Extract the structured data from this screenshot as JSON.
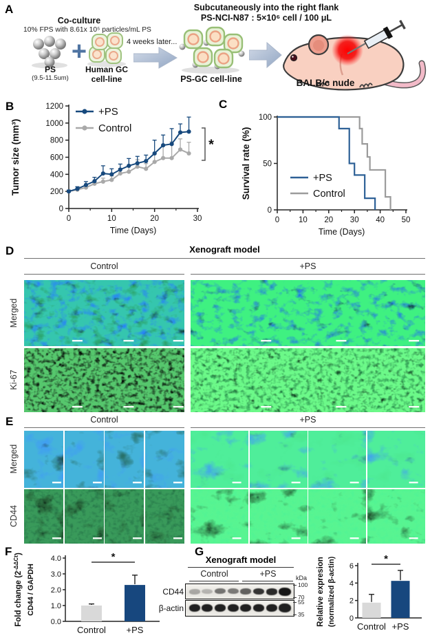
{
  "panel_a": {
    "label": "A",
    "coculture_title": "Co-culture",
    "coculture_sub": "10% FPS with 8.61x 10⁵ particles/mL PS",
    "plus_sign": "+",
    "ps_label": "PS",
    "ps_size": "(9.5-11.5um)",
    "gc_line1": "Human GC",
    "gc_line2": "cell-line",
    "weeks_later": "4 weeks later...",
    "psgc_label": "PS-GC cell-line",
    "flank_line1": "Subcutaneously into the right flank",
    "flank_line2": "PS-NCI-N87 : 5×10⁶ cell / 100 μL",
    "mouse_label": "BALB/c nude"
  },
  "panel_b": {
    "label": "B"
  },
  "panel_c": {
    "label": "C"
  },
  "panel_d": {
    "label": "D",
    "title": "Xenograft model",
    "col1": "Control",
    "col2": "+PS",
    "row1": "Merged",
    "row2": "Ki-67"
  },
  "panel_e": {
    "label": "E",
    "col1": "Control",
    "col2": "+PS",
    "row1": "Merged",
    "row2": "CD44"
  },
  "panel_f": {
    "label": "F"
  },
  "panel_g": {
    "label": "G",
    "title": "Xenograft model",
    "col1": "Control",
    "col2": "+PS",
    "blot_row1": "CD44",
    "blot_row2": "β-actin",
    "kda_label": "kDa",
    "kda_marks": [
      "100",
      "70",
      "55",
      "35"
    ],
    "western": {
      "lanes": 8,
      "cd44_intensities": [
        0.3,
        0.24,
        0.55,
        0.52,
        0.64,
        0.85,
        0.9,
        1.0
      ],
      "bactin_intensities": [
        0.95,
        0.95,
        0.95,
        0.95,
        0.95,
        0.95,
        0.95,
        0.95
      ]
    }
  },
  "colors": {
    "navy": "#17497D",
    "gray_line": "#A9A9A9",
    "gray_bar": "#D9D9D9",
    "survival_blue": "#2D6096",
    "survival_gray": "#9B9B9B"
  },
  "chart_data": [
    {
      "id": "tumor",
      "type": "line",
      "xlabel": "Time (Days)",
      "ylabel": "Tumor size (mm³)",
      "xlim": [
        0,
        30
      ],
      "ylim": [
        0,
        1200
      ],
      "xticks": [
        0,
        10,
        20,
        30
      ],
      "xticks_minor": [
        5,
        15,
        25
      ],
      "yticks": [
        0,
        200,
        400,
        600,
        800,
        1000,
        1200
      ],
      "x": [
        0,
        2,
        4,
        6,
        8,
        10,
        12,
        14,
        16,
        18,
        20,
        22,
        24,
        26,
        28
      ],
      "series": [
        {
          "name": "+PS",
          "color": "#17497D",
          "values": [
            200,
            230,
            275,
            320,
            410,
            400,
            455,
            500,
            530,
            555,
            645,
            740,
            755,
            890,
            900
          ],
          "err": [
            15,
            25,
            40,
            45,
            90,
            65,
            65,
            85,
            80,
            70,
            155,
            120,
            180,
            100,
            170
          ]
        },
        {
          "name": "Control",
          "color": "#A9A9A9",
          "values": [
            200,
            220,
            245,
            290,
            315,
            335,
            410,
            430,
            490,
            465,
            545,
            590,
            590,
            690,
            645
          ],
          "err": [
            10,
            15,
            20,
            30,
            40,
            45,
            60,
            60,
            80,
            60,
            90,
            150,
            190,
            125,
            130
          ]
        }
      ],
      "significance": "*",
      "legend_position": "top-left",
      "grid": false
    },
    {
      "id": "survival",
      "type": "step-line",
      "xlabel": "Time (Days)",
      "ylabel": "Survival rate (%)",
      "xlim": [
        0,
        50
      ],
      "ylim": [
        0,
        100
      ],
      "xticks": [
        0,
        10,
        20,
        30,
        40,
        50
      ],
      "xticks_minor": [
        5,
        15,
        25,
        35,
        45
      ],
      "yticks": [
        0,
        50,
        100
      ],
      "series": [
        {
          "name": "+PS",
          "color": "#2D6096",
          "points": [
            [
              0,
              100
            ],
            [
              24,
              100
            ],
            [
              24,
              87.5
            ],
            [
              28,
              87.5
            ],
            [
              28,
              50
            ],
            [
              30,
              50
            ],
            [
              30,
              37.5
            ],
            [
              34,
              37.5
            ],
            [
              34,
              12.5
            ],
            [
              38,
              12.5
            ],
            [
              38,
              0
            ]
          ]
        },
        {
          "name": "Control",
          "color": "#9B9B9B",
          "points": [
            [
              0,
              100
            ],
            [
              32,
              100
            ],
            [
              32,
              87.5
            ],
            [
              33,
              87.5
            ],
            [
              33,
              71
            ],
            [
              35,
              71
            ],
            [
              35,
              57
            ],
            [
              36,
              57
            ],
            [
              36,
              43
            ],
            [
              42,
              43
            ],
            [
              42,
              14
            ],
            [
              44,
              14
            ],
            [
              44,
              0
            ]
          ]
        }
      ],
      "legend_position": "bottom-left",
      "grid": false
    },
    {
      "id": "foldchange",
      "type": "bar",
      "ylabel_pre": "Fold change (2",
      "ylabel_sup": "-ΔΔCt",
      "ylabel_post": ")",
      "ylabel_line2": "CD44 / GAPDH",
      "categories": [
        "Control",
        "+PS"
      ],
      "values": [
        1.0,
        2.3
      ],
      "errors": [
        0.1,
        0.62
      ],
      "colors": [
        "#D9D9D9",
        "#17477E"
      ],
      "ylim": [
        0,
        4
      ],
      "ytick_labels": [
        "0.0",
        "1.0",
        "2.0",
        "3.0",
        "4.0"
      ],
      "significance": "*",
      "grid": false
    },
    {
      "id": "relexpr",
      "type": "bar",
      "ylabel_line1": "Relative expresion",
      "ylabel_line2": "(normalized β-actin)",
      "categories": [
        "Control",
        "+PS"
      ],
      "values": [
        1.75,
        4.25
      ],
      "errors": [
        0.95,
        1.2
      ],
      "colors": [
        "#D9D9D9",
        "#17477E"
      ],
      "ylim": [
        0,
        6
      ],
      "ytick_labels": [
        "0",
        "2",
        "4",
        "6"
      ],
      "significance": "*",
      "grid": false
    }
  ]
}
